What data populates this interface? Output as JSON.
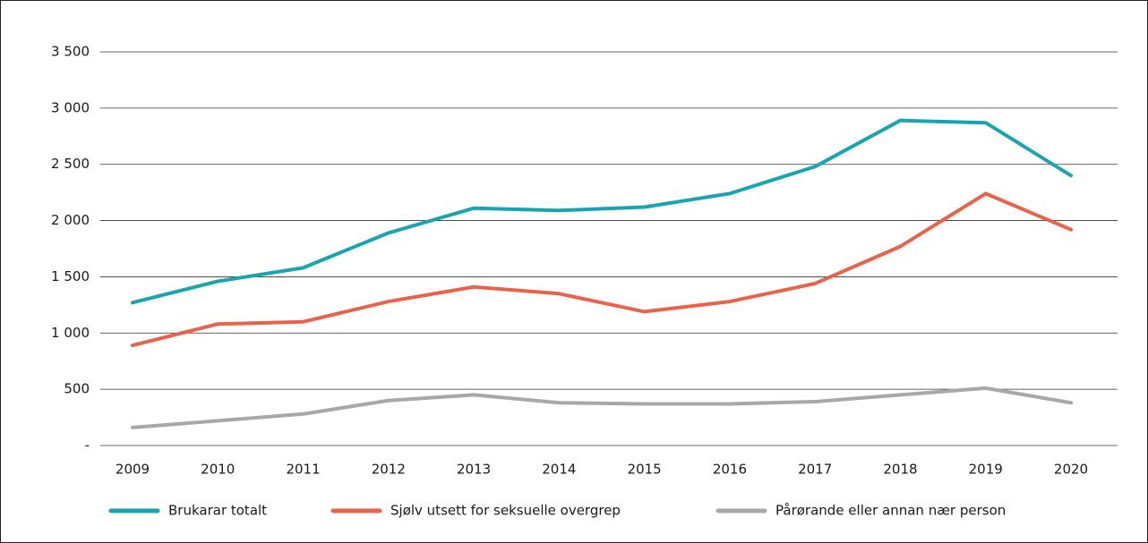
{
  "chart_data": {
    "type": "line",
    "categories": [
      "2009",
      "2010",
      "2011",
      "2012",
      "2013",
      "2014",
      "2015",
      "2016",
      "2017",
      "2018",
      "2019",
      "2020"
    ],
    "series": [
      {
        "name": "Brukarar totalt",
        "color": "#1aa4b0",
        "values": [
          1270,
          1460,
          1580,
          1890,
          2110,
          2090,
          2120,
          2240,
          2480,
          2890,
          2870,
          2400
        ]
      },
      {
        "name": "Sjølv utsett for seksuelle overgrep",
        "color": "#e9624c",
        "values": [
          890,
          1080,
          1100,
          1280,
          1410,
          1350,
          1190,
          1280,
          1440,
          1770,
          2240,
          1920
        ]
      },
      {
        "name": "Pårørande eller annan nær person",
        "color": "#a8a8a8",
        "values": [
          160,
          220,
          280,
          400,
          450,
          380,
          370,
          370,
          390,
          450,
          510,
          380
        ]
      }
    ],
    "ylim": [
      0,
      3500
    ],
    "yticks": [
      {
        "value": 0,
        "label": "-"
      },
      500,
      {
        "value": 1000,
        "label": "1 000"
      },
      {
        "value": 1500,
        "label": "1 500"
      },
      {
        "value": 2000,
        "label": "2 000"
      },
      {
        "value": 2500,
        "label": "2 500"
      },
      {
        "value": 3000,
        "label": "3 000"
      },
      {
        "value": 3500,
        "label": "3 500"
      }
    ],
    "grid": true,
    "legend": "bottom"
  }
}
